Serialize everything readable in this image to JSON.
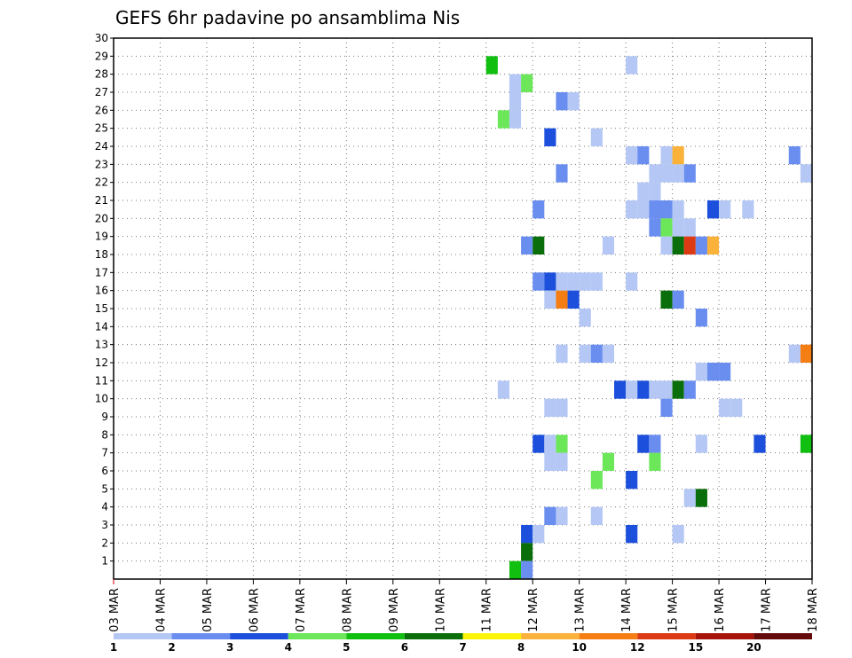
{
  "chart_data": {
    "type": "heatmap",
    "title": "GEFS 6hr padavine po ansamblima Nis",
    "xlabel": "",
    "ylabel": "",
    "x_tick_labels": [
      "03 MAR",
      "04 MAR",
      "05 MAR",
      "06 MAR",
      "07 MAR",
      "08 MAR",
      "09 MAR",
      "10 MAR",
      "11 MAR",
      "12 MAR",
      "13 MAR",
      "14 MAR",
      "15 MAR",
      "16 MAR",
      "17 MAR",
      "18 MAR"
    ],
    "x_step": "6hr",
    "x_range": [
      "03 MAR 00Z",
      "18 MAR 00Z"
    ],
    "y_tick_labels": [
      "1",
      "2",
      "3",
      "4",
      "5",
      "6",
      "7",
      "8",
      "9",
      "10",
      "11",
      "12",
      "13",
      "14",
      "15",
      "16",
      "17",
      "18",
      "19",
      "20",
      "21",
      "22",
      "23",
      "24",
      "25",
      "26",
      "27",
      "28",
      "29",
      "30"
    ],
    "ylim": [
      0,
      30
    ],
    "grid": true,
    "legend": {
      "placement": "bottom",
      "labels": [
        "1",
        "2",
        "3",
        "4",
        "5",
        "6",
        "7",
        "8",
        "10",
        "12",
        "15",
        "20"
      ],
      "colors": [
        "#b4c7f5",
        "#6a8ef0",
        "#1b4fdc",
        "#6ce75a",
        "#11bf11",
        "#0a6e0a",
        "#fcf50a",
        "#fbb23a",
        "#f57e14",
        "#dc3a14",
        "#a6140c",
        "#640a0a"
      ]
    },
    "cells_note": "each cell: [step index from 03 MAR 00Z in 6hr steps, ensemble member, precipitation class 1-12 from legend]",
    "cells": [
      [
        32,
        28,
        5
      ],
      [
        34,
        27,
        1
      ],
      [
        35,
        27,
        4
      ],
      [
        34,
        26,
        1
      ],
      [
        38,
        26,
        2
      ],
      [
        39,
        26,
        1
      ],
      [
        33,
        25,
        4
      ],
      [
        34,
        25,
        1
      ],
      [
        37,
        24,
        3
      ],
      [
        41,
        24,
        1
      ],
      [
        44,
        28,
        1
      ],
      [
        44,
        23,
        1
      ],
      [
        45,
        23,
        2
      ],
      [
        47,
        23,
        1
      ],
      [
        48,
        23,
        8
      ],
      [
        58,
        23,
        2
      ],
      [
        38,
        22,
        2
      ],
      [
        46,
        22,
        1
      ],
      [
        47,
        22,
        1
      ],
      [
        48,
        22,
        1
      ],
      [
        49,
        22,
        2
      ],
      [
        59,
        22,
        1
      ],
      [
        45,
        21,
        1
      ],
      [
        46,
        21,
        1
      ],
      [
        36,
        20,
        2
      ],
      [
        44,
        20,
        1
      ],
      [
        45,
        20,
        1
      ],
      [
        46,
        20,
        2
      ],
      [
        47,
        20,
        2
      ],
      [
        48,
        20,
        1
      ],
      [
        51,
        20,
        3
      ],
      [
        52,
        20,
        1
      ],
      [
        54,
        20,
        1
      ],
      [
        46,
        19,
        2
      ],
      [
        47,
        19,
        4
      ],
      [
        48,
        19,
        1
      ],
      [
        49,
        19,
        1
      ],
      [
        35,
        18,
        2
      ],
      [
        36,
        18,
        6
      ],
      [
        42,
        18,
        1
      ],
      [
        47,
        18,
        1
      ],
      [
        48,
        18,
        6
      ],
      [
        49,
        18,
        10
      ],
      [
        50,
        18,
        2
      ],
      [
        51,
        18,
        8
      ],
      [
        36,
        16,
        2
      ],
      [
        37,
        16,
        3
      ],
      [
        38,
        16,
        1
      ],
      [
        39,
        16,
        1
      ],
      [
        40,
        16,
        1
      ],
      [
        41,
        16,
        1
      ],
      [
        44,
        16,
        1
      ],
      [
        37,
        15,
        1
      ],
      [
        38,
        15,
        9
      ],
      [
        39,
        15,
        3
      ],
      [
        47,
        15,
        6
      ],
      [
        48,
        15,
        2
      ],
      [
        40,
        14,
        1
      ],
      [
        50,
        14,
        2
      ],
      [
        38,
        12,
        1
      ],
      [
        40,
        12,
        1
      ],
      [
        41,
        12,
        2
      ],
      [
        42,
        12,
        1
      ],
      [
        58,
        12,
        1
      ],
      [
        59,
        12,
        9
      ],
      [
        50,
        11,
        1
      ],
      [
        51,
        11,
        2
      ],
      [
        52,
        11,
        2
      ],
      [
        33,
        10,
        1
      ],
      [
        43,
        10,
        3
      ],
      [
        44,
        10,
        1
      ],
      [
        45,
        10,
        3
      ],
      [
        46,
        10,
        1
      ],
      [
        47,
        10,
        1
      ],
      [
        48,
        10,
        6
      ],
      [
        49,
        10,
        2
      ],
      [
        37,
        9,
        1
      ],
      [
        38,
        9,
        1
      ],
      [
        47,
        9,
        2
      ],
      [
        52,
        9,
        1
      ],
      [
        53,
        9,
        1
      ],
      [
        36,
        7,
        3
      ],
      [
        37,
        7,
        1
      ],
      [
        38,
        7,
        4
      ],
      [
        45,
        7,
        3
      ],
      [
        46,
        7,
        2
      ],
      [
        50,
        7,
        1
      ],
      [
        55,
        7,
        3
      ],
      [
        59,
        7,
        5
      ],
      [
        37,
        6,
        1
      ],
      [
        38,
        6,
        1
      ],
      [
        42,
        6,
        4
      ],
      [
        46,
        6,
        4
      ],
      [
        41,
        5,
        4
      ],
      [
        44,
        5,
        3
      ],
      [
        49,
        4,
        1
      ],
      [
        50,
        4,
        6
      ],
      [
        37,
        3,
        2
      ],
      [
        38,
        3,
        1
      ],
      [
        41,
        3,
        1
      ],
      [
        35,
        2,
        3
      ],
      [
        36,
        2,
        1
      ],
      [
        44,
        2,
        3
      ],
      [
        48,
        2,
        1
      ],
      [
        35,
        1,
        6
      ],
      [
        34,
        0,
        5
      ],
      [
        35,
        0,
        2
      ]
    ]
  }
}
